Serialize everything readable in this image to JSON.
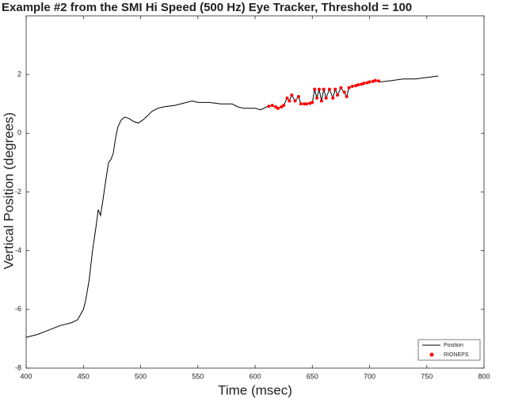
{
  "chart_data": {
    "type": "line",
    "title": "Example #2 from the SMI Hi Speed (500 Hz) Eye Tracker, Threshold = 100",
    "x_label": "Time (msec)",
    "y_label": "Vertical Position (degrees)",
    "xlim": [
      400,
      800
    ],
    "xticks": [
      400,
      450,
      500,
      550,
      600,
      650,
      700,
      750,
      800
    ],
    "ylim": [
      -8,
      4
    ],
    "yticks": [
      -8,
      -6,
      -4,
      -2,
      0,
      2
    ],
    "legend": "lower right",
    "series": [
      {
        "name": "Position",
        "color": "#000000",
        "style": "line",
        "x": [
          400,
          410,
          420,
          430,
          440,
          445,
          450,
          452,
          455,
          458,
          461,
          463,
          465,
          467,
          470,
          472,
          474,
          476,
          478,
          480,
          483,
          486,
          490,
          494,
          498,
          502,
          506,
          510,
          515,
          520,
          530,
          540,
          545,
          550,
          560,
          570,
          580,
          585,
          590,
          600,
          605,
          610,
          615,
          620,
          625,
          628,
          630,
          632,
          635,
          638,
          640,
          645,
          650,
          652,
          654,
          656,
          658,
          660,
          662,
          665,
          668,
          670,
          672,
          675,
          680,
          682,
          685,
          690,
          695,
          700,
          705,
          710,
          720,
          730,
          740,
          750,
          760
        ],
        "values": [
          -6.95,
          -6.85,
          -6.7,
          -6.55,
          -6.45,
          -6.35,
          -6.0,
          -5.7,
          -5.0,
          -4.0,
          -3.2,
          -2.6,
          -2.8,
          -2.3,
          -1.5,
          -1.0,
          -0.9,
          -0.7,
          -0.2,
          0.2,
          0.45,
          0.55,
          0.5,
          0.4,
          0.35,
          0.45,
          0.6,
          0.75,
          0.85,
          0.9,
          0.95,
          1.05,
          1.1,
          1.05,
          1.05,
          1.0,
          1.0,
          0.9,
          0.85,
          0.85,
          0.8,
          0.9,
          0.95,
          0.85,
          0.95,
          1.2,
          1.1,
          1.3,
          1.1,
          1.25,
          1.0,
          1.0,
          1.05,
          1.5,
          1.2,
          1.5,
          1.1,
          1.5,
          1.2,
          1.5,
          1.2,
          1.5,
          1.3,
          1.55,
          1.25,
          1.55,
          1.6,
          1.65,
          1.7,
          1.75,
          1.8,
          1.75,
          1.8,
          1.85,
          1.85,
          1.9,
          1.95
        ]
      },
      {
        "name": "RIONEPS",
        "color": "#ff0000",
        "style": "markers",
        "x": [
          612,
          615,
          618,
          620,
          623,
          625,
          628,
          630,
          632,
          635,
          638,
          640,
          643,
          645,
          648,
          650,
          652,
          654,
          656,
          658,
          660,
          662,
          665,
          668,
          670,
          672,
          675,
          678,
          680,
          682,
          685,
          688,
          690,
          693,
          695,
          698,
          700,
          703,
          705,
          708
        ],
        "values": [
          0.92,
          0.95,
          0.9,
          0.85,
          0.9,
          0.95,
          1.2,
          1.1,
          1.3,
          1.1,
          1.25,
          1.0,
          1.0,
          1.0,
          1.02,
          1.05,
          1.5,
          1.2,
          1.5,
          1.1,
          1.5,
          1.2,
          1.5,
          1.2,
          1.5,
          1.3,
          1.55,
          1.4,
          1.25,
          1.55,
          1.6,
          1.62,
          1.65,
          1.67,
          1.7,
          1.72,
          1.75,
          1.77,
          1.8,
          1.78
        ]
      }
    ]
  }
}
